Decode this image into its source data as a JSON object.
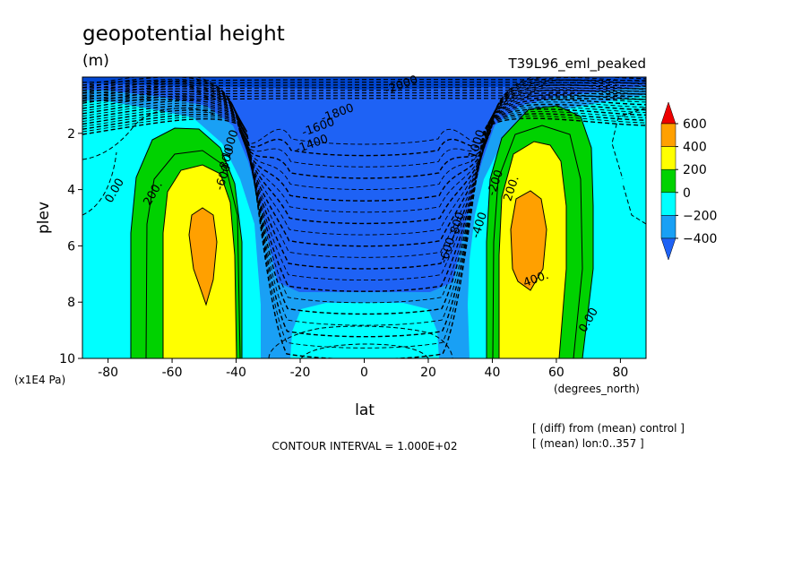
{
  "chart_data": {
    "type": "heatmap",
    "title": "geopotential height",
    "units": "(m)",
    "experiment": "T39L96_eml_peaked",
    "xlabel": "lat",
    "ylabel": "plev",
    "x_units": "(degrees_north)",
    "y_units": "(x1E4 Pa)",
    "xlim": [
      -88,
      88
    ],
    "ylim": [
      10,
      0
    ],
    "x_ticks": [
      -80,
      -60,
      -40,
      -20,
      0,
      20,
      40,
      60,
      80
    ],
    "x_tick_labels": [
      "-80",
      "-60",
      "-40",
      "-20",
      "0",
      "20",
      "40",
      "60",
      "80"
    ],
    "y_ticks": [
      2,
      4,
      6,
      8,
      10
    ],
    "y_tick_labels": [
      "2",
      "4",
      "6",
      "8",
      "10"
    ],
    "contour_interval_text": "CONTOUR INTERVAL = 1.000E+02",
    "notes": [
      "[ (diff) from (mean) control ]",
      "[ (mean) lon:0..357 ]"
    ],
    "colorbar": {
      "bounds": [
        -400,
        -200,
        0,
        200,
        400,
        600
      ],
      "labels": [
        "600",
        "400",
        "200",
        "0",
        "−200",
        "−400"
      ],
      "colors": [
        "#1e62f5",
        "#19a0f5",
        "#00ffff",
        "#00d200",
        "#ffff00",
        "#ffa000",
        "#ee0000"
      ]
    },
    "field_colors": {
      "band_lt_m400": "#1e62f5",
      "band_m400_m200": "#19a0f5",
      "band_m200_0": "#00ffff",
      "band_0_200": "#00d200",
      "band_200_400": "#ffff00",
      "band_400_600": "#ffa000",
      "top_dark": "#0046d2"
    },
    "contour_labels": [
      {
        "text": "-2000",
        "lat": 12,
        "plev": 0.4
      },
      {
        "text": "-1800",
        "lat": -8,
        "plev": 1.4
      },
      {
        "text": "-1600",
        "lat": -14,
        "plev": 1.9
      },
      {
        "text": "-1400",
        "lat": -16,
        "plev": 2.5
      },
      {
        "text": "-1000",
        "lat": -41,
        "plev": 2.5
      },
      {
        "text": "-800",
        "lat": -42,
        "plev": 3.0
      },
      {
        "text": "-600",
        "lat": -43,
        "plev": 3.6
      },
      {
        "text": "-800",
        "lat": 30,
        "plev": 5.3
      },
      {
        "text": "-600",
        "lat": 27,
        "plev": 6.2
      },
      {
        "text": "-400",
        "lat": 37,
        "plev": 5.3
      },
      {
        "text": "-200",
        "lat": 42,
        "plev": 3.8
      },
      {
        "text": "-1000",
        "lat": 36,
        "plev": 2.5
      },
      {
        "text": "0.00",
        "lat": -77,
        "plev": 4.1
      },
      {
        "text": "200.",
        "lat": -65,
        "plev": 4.2
      },
      {
        "text": "200.",
        "lat": 47,
        "plev": 4.0
      },
      {
        "text": "400.",
        "lat": 54,
        "plev": 7.3
      },
      {
        "text": "0.00",
        "lat": 71,
        "plev": 8.7
      }
    ]
  }
}
